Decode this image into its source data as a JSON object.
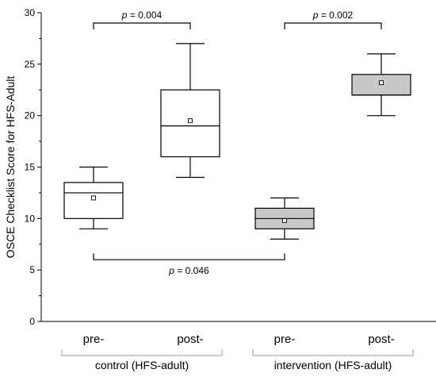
{
  "chart_data": {
    "type": "box",
    "ylabel": "OSCE Checklist Score for HFS-Adult",
    "ylim": [
      0,
      30
    ],
    "y_ticks": [
      0,
      5,
      10,
      15,
      20,
      25,
      30
    ],
    "categories": [
      "pre-",
      "post-",
      "pre-",
      "post-"
    ],
    "groups": [
      {
        "label": "control (HFS-adult)",
        "categories": [
          0,
          1
        ]
      },
      {
        "label": "intervention (HFS-adult)",
        "categories": [
          2,
          3
        ]
      }
    ],
    "boxes": [
      {
        "category": "pre-",
        "group": "control (HFS-adult)",
        "min": 9,
        "q1": 10,
        "median": 12.5,
        "q3": 13.5,
        "max": 15,
        "mean": 12,
        "fill": "#ffffff"
      },
      {
        "category": "post-",
        "group": "control (HFS-adult)",
        "min": 14,
        "q1": 16,
        "median": 19,
        "q3": 22.5,
        "max": 27,
        "mean": 19.5,
        "fill": "#ffffff"
      },
      {
        "category": "pre-",
        "group": "intervention (HFS-adult)",
        "min": 8,
        "q1": 9,
        "median": 10,
        "q3": 11,
        "max": 12,
        "mean": 9.8,
        "fill": "#c8c8c8"
      },
      {
        "category": "post-",
        "group": "intervention (HFS-adult)",
        "min": 20,
        "q1": 22,
        "median": 22,
        "q3": 24,
        "max": 26,
        "mean": 23.2,
        "fill": "#c8c8c8"
      }
    ],
    "annotations": [
      {
        "from": 0,
        "to": 1,
        "y": 29,
        "direction": "down",
        "p_label": "p",
        "value_text": " = 0.004"
      },
      {
        "from": 2,
        "to": 3,
        "y": 29,
        "direction": "down",
        "p_label": "p",
        "value_text": " = 0.002"
      },
      {
        "from": 0,
        "to": 2,
        "y": 6,
        "direction": "up",
        "p_label": "p",
        "value_text": " = 0.046"
      }
    ],
    "grid": false
  }
}
